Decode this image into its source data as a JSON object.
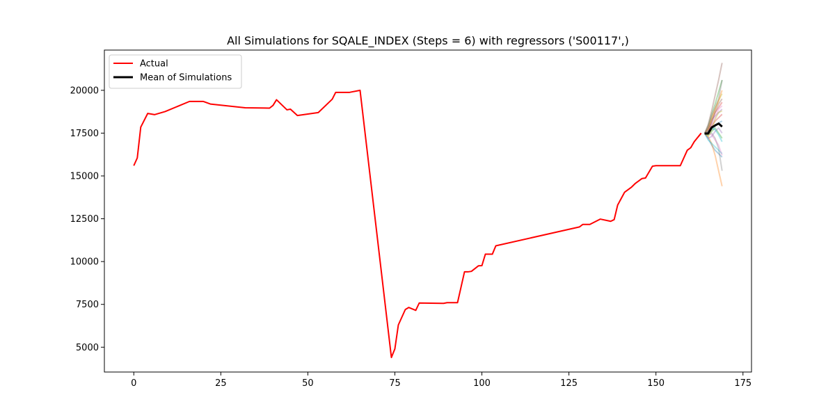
{
  "chart_data": {
    "type": "line",
    "title": "All Simulations for SQALE_INDEX (Steps = 6) with regressors ('S00117',)",
    "xlabel": "",
    "ylabel": "",
    "xlim": [
      -8.45,
      177.45
    ],
    "ylim": [
      3550,
      22350
    ],
    "x_ticks": [
      0,
      25,
      50,
      75,
      100,
      125,
      150,
      175
    ],
    "y_ticks": [
      5000,
      7500,
      10000,
      12500,
      15000,
      17500,
      20000
    ],
    "grid": false,
    "legend_position": "upper-left",
    "colors": {
      "actual": "#ff0000",
      "mean": "#000000",
      "simulation_palette": [
        "#1f77b4",
        "#ff7f0e",
        "#2ca02c",
        "#d62728",
        "#9467bd",
        "#8c564b",
        "#e377c2",
        "#7f7f7f",
        "#bcbd22",
        "#17becf"
      ]
    },
    "series": [
      {
        "name": "Actual",
        "x": [
          0,
          1,
          2,
          4,
          6,
          9,
          16,
          20,
          22,
          32,
          39,
          40,
          41,
          44,
          45,
          47,
          53,
          57,
          58,
          62,
          65,
          74,
          75,
          76,
          78,
          79,
          81,
          82,
          89,
          90,
          93,
          94,
          95,
          96,
          97,
          99,
          100,
          101,
          103,
          104,
          128,
          129,
          131,
          134,
          137,
          138,
          139,
          141,
          143,
          144,
          146,
          147,
          149,
          150,
          157,
          159,
          160,
          161,
          163
        ],
        "y": [
          15600,
          16050,
          17850,
          18650,
          18580,
          18760,
          19350,
          19350,
          19200,
          18980,
          18960,
          19120,
          19450,
          18860,
          18900,
          18530,
          18700,
          19480,
          19880,
          19880,
          20000,
          4400,
          4900,
          6300,
          7200,
          7320,
          7150,
          7580,
          7560,
          7600,
          7600,
          8500,
          9400,
          9400,
          9430,
          9750,
          9760,
          10430,
          10430,
          10920,
          12020,
          12170,
          12170,
          12480,
          12350,
          12450,
          13300,
          14050,
          14350,
          14550,
          14850,
          14880,
          15570,
          15600,
          15600,
          16500,
          16650,
          17000,
          17500
        ]
      },
      {
        "name": "Mean of Simulations",
        "x": [
          164,
          165,
          166,
          167,
          168,
          169
        ],
        "y": [
          17480,
          17480,
          17830,
          17950,
          18060,
          17880
        ]
      }
    ],
    "simulations": [
      {
        "x": [
          164,
          165,
          166,
          167,
          168,
          169
        ],
        "y": [
          17480,
          17200,
          16800,
          16500,
          16300,
          16100
        ]
      },
      {
        "x": [
          164,
          165,
          166,
          167,
          168,
          169
        ],
        "y": [
          17480,
          17300,
          16900,
          16200,
          15300,
          14400
        ]
      },
      {
        "x": [
          164,
          165,
          166,
          167,
          168,
          169
        ],
        "y": [
          17480,
          17900,
          18600,
          19200,
          19900,
          20600
        ]
      },
      {
        "x": [
          164,
          165,
          166,
          167,
          168,
          169
        ],
        "y": [
          17480,
          17600,
          18200,
          18700,
          19000,
          19300
        ]
      },
      {
        "x": [
          164,
          165,
          166,
          167,
          168,
          169
        ],
        "y": [
          17480,
          17800,
          18300,
          18500,
          18700,
          18900
        ]
      },
      {
        "x": [
          164,
          165,
          166,
          167,
          168,
          169
        ],
        "y": [
          17480,
          18000,
          18800,
          19700,
          20600,
          21600
        ]
      },
      {
        "x": [
          164,
          165,
          166,
          167,
          168,
          169
        ],
        "y": [
          17480,
          17500,
          18000,
          18400,
          18900,
          19100
        ]
      },
      {
        "x": [
          164,
          165,
          166,
          167,
          168,
          169
        ],
        "y": [
          17480,
          17400,
          17500,
          17200,
          16600,
          15300
        ]
      },
      {
        "x": [
          164,
          165,
          166,
          167,
          168,
          169
        ],
        "y": [
          17480,
          17700,
          18300,
          18900,
          19400,
          19800
        ]
      },
      {
        "x": [
          164,
          165,
          166,
          167,
          168,
          169
        ],
        "y": [
          17480,
          17100,
          16900,
          16700,
          16500,
          16300
        ]
      },
      {
        "x": [
          164,
          165,
          166,
          167,
          168,
          169
        ],
        "y": [
          17480,
          17500,
          17700,
          17900,
          18100,
          18200
        ]
      },
      {
        "x": [
          164,
          165,
          166,
          167,
          168,
          169
        ],
        "y": [
          17480,
          17800,
          18400,
          18900,
          19400,
          20000
        ]
      },
      {
        "x": [
          164,
          165,
          166,
          167,
          168,
          169
        ],
        "y": [
          17480,
          17400,
          17600,
          17800,
          17500,
          17200
        ]
      },
      {
        "x": [
          164,
          165,
          166,
          167,
          168,
          169
        ],
        "y": [
          17480,
          17600,
          17900,
          18200,
          18400,
          18600
        ]
      },
      {
        "x": [
          164,
          165,
          166,
          167,
          168,
          169
        ],
        "y": [
          17480,
          17200,
          17300,
          17600,
          17800,
          17500
        ]
      },
      {
        "x": [
          164,
          165,
          166,
          167,
          168,
          169
        ],
        "y": [
          17480,
          17700,
          18100,
          18700,
          19200,
          19500
        ]
      },
      {
        "x": [
          164,
          165,
          166,
          167,
          168,
          169
        ],
        "y": [
          17480,
          17500,
          17400,
          17100,
          16800,
          16200
        ]
      },
      {
        "x": [
          164,
          165,
          166,
          167,
          168,
          169
        ],
        "y": [
          17480,
          17900,
          18500,
          19000,
          19500,
          20600
        ]
      },
      {
        "x": [
          164,
          165,
          166,
          167,
          168,
          169
        ],
        "y": [
          17480,
          17300,
          17700,
          18300,
          18700,
          18800
        ]
      },
      {
        "x": [
          164,
          165,
          166,
          167,
          168,
          169
        ],
        "y": [
          17480,
          17600,
          17800,
          17700,
          17400,
          17000
        ]
      }
    ]
  }
}
